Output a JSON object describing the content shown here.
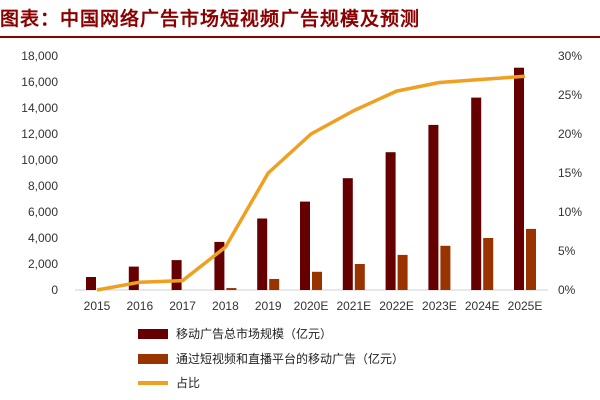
{
  "chart_data": {
    "type": "bar",
    "title": "图表：中国网络广告市场短视频广告规模及预测",
    "categories": [
      "2015",
      "2016",
      "2017",
      "2018",
      "2019",
      "2020E",
      "2021E",
      "2022E",
      "2023E",
      "2024E",
      "2025E"
    ],
    "series": [
      {
        "name": "移动广告总市场规模（亿元）",
        "type": "bar",
        "axis": "left",
        "color": "#660000",
        "values": [
          1000,
          1800,
          2300,
          3700,
          5500,
          6800,
          8600,
          10600,
          12700,
          14800,
          17100
        ]
      },
      {
        "name": "通过短视频和直播平台的移动广告（亿元）",
        "type": "bar",
        "axis": "left",
        "color": "#993300",
        "values": [
          0,
          0,
          0,
          150,
          850,
          1400,
          2000,
          2700,
          3400,
          4000,
          4700
        ]
      },
      {
        "name": "占比",
        "type": "line",
        "axis": "right",
        "color": "#f0a020",
        "values": [
          0,
          1.0,
          1.2,
          5.5,
          15,
          20,
          23,
          25.5,
          26.6,
          27,
          27.4
        ]
      }
    ],
    "ylim": [
      0,
      18000
    ],
    "y2lim": [
      0,
      30
    ],
    "yticks": [
      "0",
      "2,000",
      "4,000",
      "6,000",
      "8,000",
      "10,000",
      "12,000",
      "14,000",
      "16,000",
      "18,000"
    ],
    "y2ticks": [
      "0%",
      "5%",
      "10%",
      "15%",
      "20%",
      "25%",
      "30%"
    ],
    "legend": "bottom",
    "grid": false
  }
}
